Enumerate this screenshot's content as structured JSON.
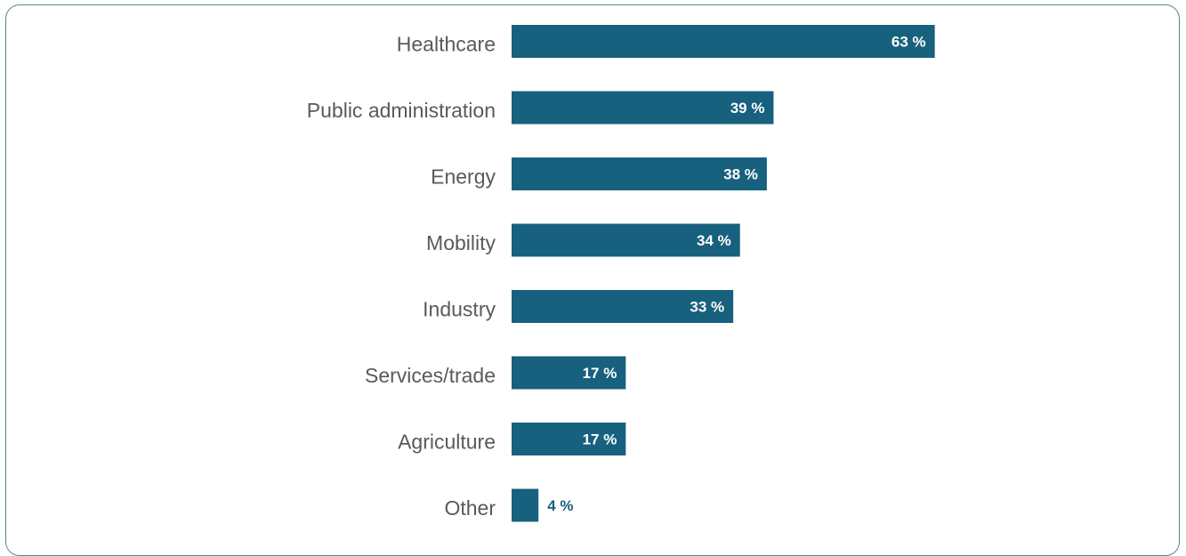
{
  "chart_data": {
    "type": "bar",
    "orientation": "horizontal",
    "categories": [
      "Healthcare",
      "Public administration",
      "Energy",
      "Mobility",
      "Industry",
      "Services/trade",
      "Agriculture",
      "Other"
    ],
    "values": [
      63,
      39,
      38,
      34,
      33,
      17,
      17,
      4
    ],
    "value_labels": [
      "63 %",
      "39 %",
      "38 %",
      "34 %",
      "33 %",
      "17 %",
      "17 %",
      "4 %"
    ],
    "unit": "%",
    "xlim": [
      0,
      100
    ],
    "grid": false,
    "legend": "none"
  },
  "colors": {
    "bar": "#17607e",
    "label_inside": "#ffffff",
    "label_outside": "#17607e",
    "category_text": "#5a5a5a",
    "frame": "#4e8a8c"
  }
}
